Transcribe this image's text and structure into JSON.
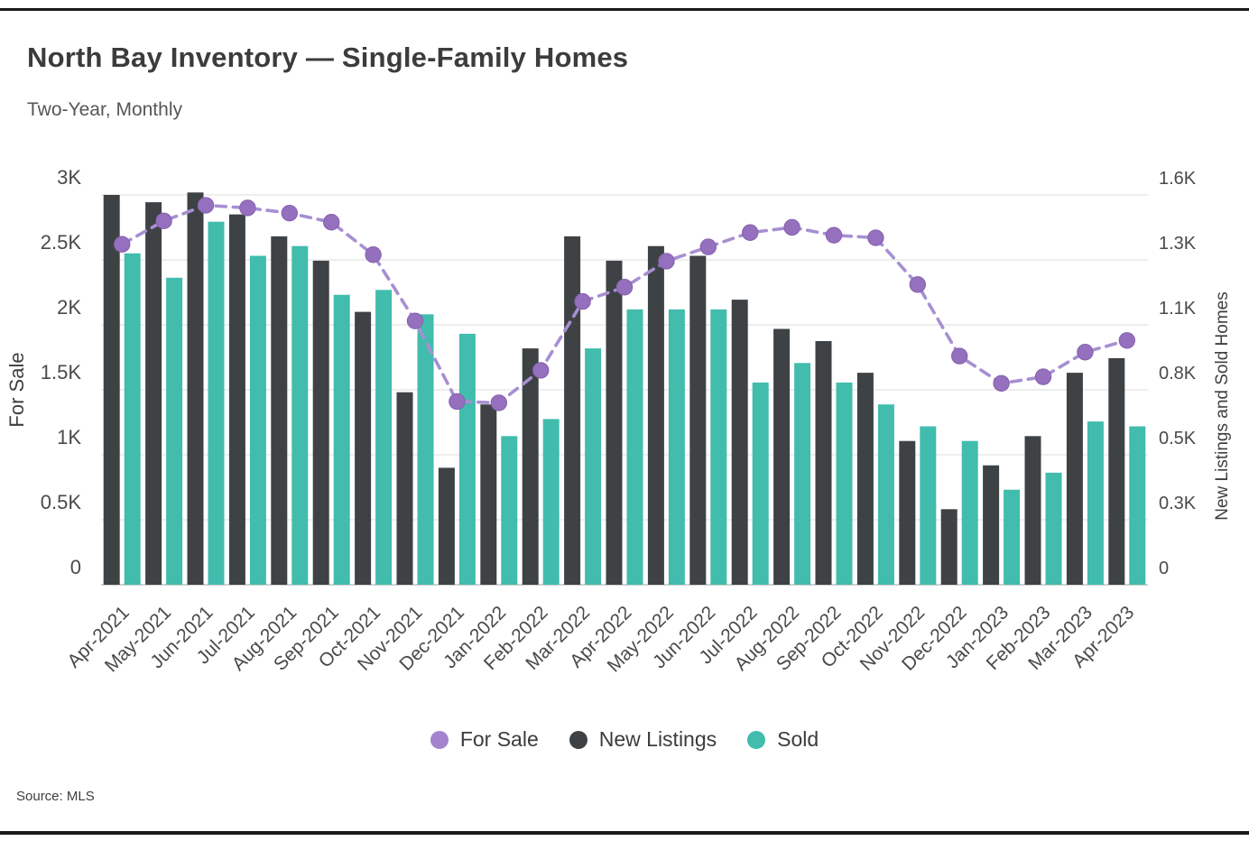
{
  "header": {
    "title": "North Bay Inventory — Single-Family Homes",
    "subtitle": "Two-Year, Monthly"
  },
  "footer": {
    "source": "Source: MLS"
  },
  "colors": {
    "line_purple": "#a78fd2",
    "marker_purple": "#9470be",
    "marker_stroke": "#8660ae",
    "legend_purple": "#a383cc",
    "bar_dark": "#3e4245",
    "bar_teal": "#41bcad",
    "gridline": "#dcdcdc",
    "axis_line": "#c2c2c2",
    "tick_text": "#4a4a4a"
  },
  "legend": [
    {
      "label": "For Sale",
      "swatch": "#a383cc"
    },
    {
      "label": "New Listings",
      "swatch": "#3e4245"
    },
    {
      "label": "Sold",
      "swatch": "#41bcad"
    }
  ],
  "chart_data": {
    "type": "combo: line + grouped bar, dual axis",
    "grid": true,
    "legend_position": "bottom",
    "categories": [
      "Apr-2021",
      "May-2021",
      "Jun-2021",
      "Jul-2021",
      "Aug-2021",
      "Sep-2021",
      "Oct-2021",
      "Nov-2021",
      "Dec-2021",
      "Jan-2022",
      "Feb-2022",
      "Mar-2022",
      "Apr-2022",
      "May-2022",
      "Jun-2022",
      "Jul-2022",
      "Aug-2022",
      "Sep-2022",
      "Oct-2022",
      "Nov-2022",
      "Dec-2022",
      "Jan-2023",
      "Feb-2023",
      "Mar-2023",
      "Apr-2023"
    ],
    "left_axis": {
      "label": "For Sale",
      "min": 0,
      "max": 3000,
      "tick_labels": [
        "3K",
        "2.5K",
        "2K",
        "1.5K",
        "1K",
        "0.5K",
        "0"
      ],
      "tick_values": [
        3000,
        2500,
        2000,
        1500,
        1000,
        500,
        0
      ]
    },
    "right_axis": {
      "label": "New Listings and Sold Homes",
      "min": 0,
      "max": 1600,
      "tick_labels": [
        "1.6K",
        "1.3K",
        "1.1K",
        "0.8K",
        "0.5K",
        "0.3K",
        "0"
      ],
      "tick_values": [
        1600,
        1333,
        1067,
        800,
        533,
        267,
        0
      ]
    },
    "series": [
      {
        "name": "For Sale",
        "type": "line",
        "axis": "left",
        "color": "#a78fd2",
        "values": [
          2620,
          2800,
          2920,
          2900,
          2860,
          2790,
          2540,
          2030,
          1410,
          1400,
          1650,
          2180,
          2290,
          2490,
          2600,
          2710,
          2750,
          2690,
          2670,
          2310,
          1760,
          1550,
          1600,
          1790,
          1880
        ]
      },
      {
        "name": "New Listings",
        "type": "bar",
        "axis": "right",
        "color": "#3e4245",
        "values": [
          1600,
          1570,
          1610,
          1520,
          1430,
          1330,
          1120,
          790,
          480,
          740,
          970,
          1430,
          1330,
          1390,
          1350,
          1170,
          1050,
          1000,
          870,
          590,
          310,
          490,
          610,
          870,
          930
        ]
      },
      {
        "name": "Sold",
        "type": "bar",
        "axis": "right",
        "color": "#41bcad",
        "values": [
          1360,
          1260,
          1490,
          1350,
          1390,
          1190,
          1210,
          1110,
          1030,
          610,
          680,
          970,
          1130,
          1130,
          1130,
          830,
          910,
          830,
          740,
          650,
          590,
          390,
          460,
          670,
          650
        ]
      }
    ]
  }
}
